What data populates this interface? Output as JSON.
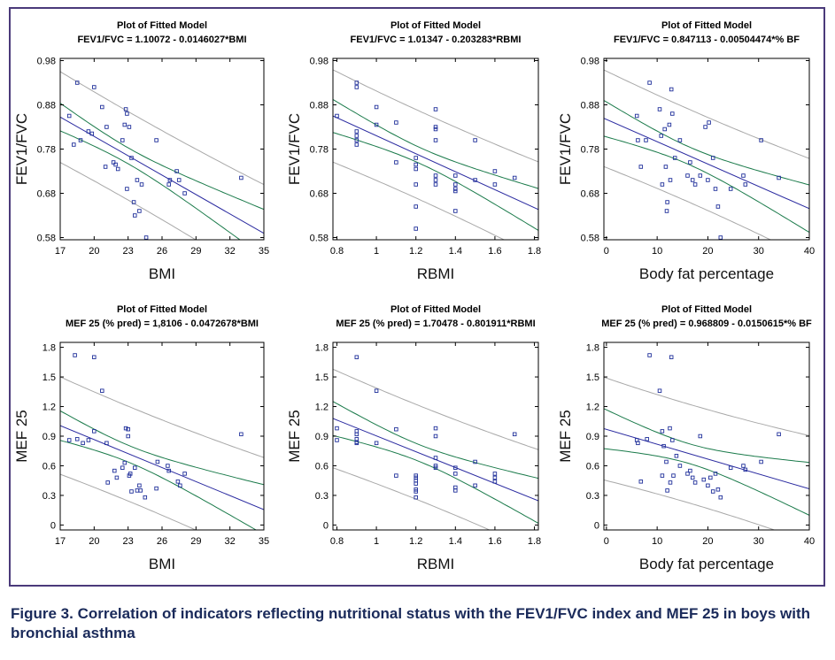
{
  "caption": "Figure 3. Correlation of indicators reflecting nutritional status with the FEV1/FVC index and MEF 25 in boys with bronchial asthma",
  "colors": {
    "points": "#1f2f9a",
    "fit": "#2a2aa0",
    "confidence": "#1a7a4a",
    "prediction": "#a8a8a8",
    "frame": "#4a3a7a"
  },
  "chart_data": [
    {
      "type": "scatter",
      "title": "Plot of Fitted Model",
      "subtitle": "FEV1/FVC = 1.10072 - 0.0146027*BMI",
      "xlabel": "BMI",
      "ylabel": "FEV1/FVC",
      "xlim": [
        17,
        35
      ],
      "ylim": [
        0.575,
        0.985
      ],
      "xticks": [
        17,
        20,
        23,
        26,
        29,
        32,
        35
      ],
      "yticks": [
        0.58,
        0.68,
        0.78,
        0.88,
        0.98
      ],
      "xtick_labels": [
        "17",
        "20",
        "23",
        "26",
        "29",
        "32",
        "35"
      ],
      "ytick_labels": [
        "0.58",
        "0.68",
        "0.78",
        "0.88",
        "0.98"
      ],
      "fit": {
        "intercept": 1.10072,
        "slope": -0.0146027
      },
      "conf_hw": 0.018,
      "pred_hw": 0.1,
      "points": [
        [
          17.8,
          0.855
        ],
        [
          18.2,
          0.79
        ],
        [
          18.5,
          0.93
        ],
        [
          18.8,
          0.8
        ],
        [
          19.5,
          0.82
        ],
        [
          19.8,
          0.815
        ],
        [
          20.0,
          0.92
        ],
        [
          20.7,
          0.875
        ],
        [
          21.0,
          0.74
        ],
        [
          21.1,
          0.83
        ],
        [
          21.7,
          0.75
        ],
        [
          21.9,
          0.745
        ],
        [
          22.1,
          0.735
        ],
        [
          22.5,
          0.8
        ],
        [
          22.7,
          0.835
        ],
        [
          22.8,
          0.87
        ],
        [
          22.9,
          0.69
        ],
        [
          22.9,
          0.86
        ],
        [
          23.1,
          0.83
        ],
        [
          23.3,
          0.76
        ],
        [
          23.5,
          0.66
        ],
        [
          23.6,
          0.63
        ],
        [
          23.8,
          0.71
        ],
        [
          24.0,
          0.64
        ],
        [
          24.2,
          0.7
        ],
        [
          24.6,
          0.58
        ],
        [
          25.5,
          0.8
        ],
        [
          26.6,
          0.7
        ],
        [
          26.7,
          0.71
        ],
        [
          27.3,
          0.73
        ],
        [
          27.5,
          0.71
        ],
        [
          28.0,
          0.68
        ],
        [
          33.0,
          0.715
        ]
      ]
    },
    {
      "type": "scatter",
      "title": "Plot of Fitted Model",
      "subtitle": "FEV1/FVC = 1.01347 - 0.203283*RBMI",
      "xlabel": "RBMI",
      "ylabel": "FEV1/FVC",
      "xlim": [
        0.78,
        1.82
      ],
      "ylim": [
        0.575,
        0.985
      ],
      "xticks": [
        0.8,
        1,
        1.2,
        1.4,
        1.6,
        1.8
      ],
      "yticks": [
        0.58,
        0.68,
        0.78,
        0.88,
        0.98
      ],
      "xtick_labels": [
        "0.8",
        "1",
        "1.2",
        "1.4",
        "1.6",
        "1.8"
      ],
      "ytick_labels": [
        "0.58",
        "0.68",
        "0.78",
        "0.88",
        "0.98"
      ],
      "fit": {
        "intercept": 1.01347,
        "slope": -0.203283
      },
      "conf_hw": 0.018,
      "pred_hw": 0.1,
      "points": [
        [
          0.8,
          0.855
        ],
        [
          0.9,
          0.93
        ],
        [
          0.9,
          0.92
        ],
        [
          0.9,
          0.82
        ],
        [
          0.9,
          0.81
        ],
        [
          0.9,
          0.79
        ],
        [
          0.9,
          0.8
        ],
        [
          1.0,
          0.875
        ],
        [
          1.0,
          0.835
        ],
        [
          1.1,
          0.84
        ],
        [
          1.1,
          0.75
        ],
        [
          1.2,
          0.76
        ],
        [
          1.2,
          0.745
        ],
        [
          1.2,
          0.735
        ],
        [
          1.2,
          0.7
        ],
        [
          1.2,
          0.65
        ],
        [
          1.2,
          0.6
        ],
        [
          1.3,
          0.87
        ],
        [
          1.3,
          0.83
        ],
        [
          1.3,
          0.825
        ],
        [
          1.3,
          0.8
        ],
        [
          1.3,
          0.72
        ],
        [
          1.3,
          0.71
        ],
        [
          1.3,
          0.7
        ],
        [
          1.4,
          0.72
        ],
        [
          1.4,
          0.7
        ],
        [
          1.4,
          0.69
        ],
        [
          1.4,
          0.685
        ],
        [
          1.4,
          0.64
        ],
        [
          1.5,
          0.8
        ],
        [
          1.5,
          0.71
        ],
        [
          1.6,
          0.73
        ],
        [
          1.6,
          0.7
        ],
        [
          1.7,
          0.715
        ]
      ]
    },
    {
      "type": "scatter",
      "title": "Plot of Fitted Model",
      "subtitle": "FEV1/FVC = 0.847113 - 0.00504474*% BF",
      "xlabel": "Body fat percentage",
      "ylabel": "FEV1/FVC",
      "xlim": [
        -0.5,
        40
      ],
      "ylim": [
        0.575,
        0.985
      ],
      "xticks": [
        0,
        10,
        20,
        30,
        40
      ],
      "yticks": [
        0.58,
        0.68,
        0.78,
        0.88,
        0.98
      ],
      "xtick_labels": [
        "0",
        "10",
        "20",
        "30",
        "40"
      ],
      "ytick_labels": [
        "0.58",
        "0.68",
        "0.78",
        "0.88",
        "0.98"
      ],
      "fit": {
        "intercept": 0.847113,
        "slope": -0.00504474
      },
      "conf_hw": 0.02,
      "pred_hw": 0.105,
      "points": [
        [
          6.0,
          0.855
        ],
        [
          6.2,
          0.8
        ],
        [
          6.8,
          0.74
        ],
        [
          7.8,
          0.8
        ],
        [
          8.5,
          0.93
        ],
        [
          10.5,
          0.87
        ],
        [
          10.8,
          0.81
        ],
        [
          11.0,
          0.7
        ],
        [
          11.5,
          0.825
        ],
        [
          11.7,
          0.74
        ],
        [
          11.9,
          0.64
        ],
        [
          12.0,
          0.66
        ],
        [
          12.4,
          0.835
        ],
        [
          12.6,
          0.71
        ],
        [
          12.8,
          0.915
        ],
        [
          13.0,
          0.86
        ],
        [
          13.5,
          0.76
        ],
        [
          14.5,
          0.8
        ],
        [
          16.0,
          0.72
        ],
        [
          16.5,
          0.75
        ],
        [
          17.0,
          0.71
        ],
        [
          17.5,
          0.7
        ],
        [
          18.5,
          0.72
        ],
        [
          19.5,
          0.83
        ],
        [
          20.0,
          0.71
        ],
        [
          20.2,
          0.84
        ],
        [
          21.0,
          0.76
        ],
        [
          21.5,
          0.69
        ],
        [
          22.0,
          0.65
        ],
        [
          22.5,
          0.58
        ],
        [
          24.5,
          0.69
        ],
        [
          27.0,
          0.72
        ],
        [
          27.4,
          0.7
        ],
        [
          30.5,
          0.8
        ],
        [
          34.0,
          0.715
        ]
      ]
    },
    {
      "type": "scatter",
      "title": "Plot of Fitted Model",
      "subtitle": "MEF 25 (% pred) = 1,8106 - 0.0472678*BMI",
      "xlabel": "BMI",
      "ylabel": "MEF 25",
      "xlim": [
        17,
        35
      ],
      "ylim": [
        -0.05,
        1.85
      ],
      "xticks": [
        17,
        20,
        23,
        26,
        29,
        32,
        35
      ],
      "yticks": [
        0,
        0.3,
        0.6,
        0.9,
        1.2,
        1.5,
        1.8
      ],
      "xtick_labels": [
        "17",
        "20",
        "23",
        "26",
        "29",
        "32",
        "35"
      ],
      "ytick_labels": [
        "0",
        "0.3",
        "0.6",
        "0.9",
        "1.2",
        "1.5",
        "1.8"
      ],
      "fit": {
        "intercept": 1.8106,
        "slope": -0.0472678
      },
      "conf_hw": 0.085,
      "pred_hw": 0.48,
      "points": [
        [
          17.8,
          0.86
        ],
        [
          18.3,
          1.72
        ],
        [
          18.5,
          0.87
        ],
        [
          19.0,
          0.83
        ],
        [
          19.5,
          0.86
        ],
        [
          20.0,
          1.7
        ],
        [
          20.0,
          0.95
        ],
        [
          20.7,
          1.36
        ],
        [
          21.1,
          0.83
        ],
        [
          21.2,
          0.43
        ],
        [
          21.8,
          0.55
        ],
        [
          22.0,
          0.48
        ],
        [
          22.5,
          0.58
        ],
        [
          22.7,
          0.63
        ],
        [
          22.8,
          0.98
        ],
        [
          23.0,
          0.97
        ],
        [
          23.0,
          0.9
        ],
        [
          23.1,
          0.5
        ],
        [
          23.2,
          0.52
        ],
        [
          23.3,
          0.34
        ],
        [
          23.6,
          0.58
        ],
        [
          23.8,
          0.35
        ],
        [
          24.0,
          0.4
        ],
        [
          24.1,
          0.35
        ],
        [
          24.5,
          0.28
        ],
        [
          25.5,
          0.37
        ],
        [
          25.6,
          0.64
        ],
        [
          26.5,
          0.6
        ],
        [
          26.6,
          0.55
        ],
        [
          27.4,
          0.44
        ],
        [
          27.6,
          0.4
        ],
        [
          28.0,
          0.52
        ],
        [
          33.0,
          0.92
        ]
      ]
    },
    {
      "type": "scatter",
      "title": "Plot of Fitted Model",
      "subtitle": "MEF 25 (% pred) = 1.70478 - 0.801911*RBMI",
      "xlabel": "RBMI",
      "ylabel": "MEF 25",
      "xlim": [
        0.78,
        1.82
      ],
      "ylim": [
        -0.05,
        1.85
      ],
      "xticks": [
        0.8,
        1,
        1.2,
        1.4,
        1.6,
        1.8
      ],
      "yticks": [
        0,
        0.3,
        0.6,
        0.9,
        1.2,
        1.5,
        1.8
      ],
      "xtick_labels": [
        "0.8",
        "1",
        "1.2",
        "1.4",
        "1.6",
        "1.8"
      ],
      "ytick_labels": [
        "0",
        "0.3",
        "0.6",
        "0.9",
        "1.2",
        "1.5",
        "1.8"
      ],
      "fit": {
        "intercept": 1.70478,
        "slope": -0.801911
      },
      "conf_hw": 0.085,
      "pred_hw": 0.48,
      "points": [
        [
          0.8,
          0.86
        ],
        [
          0.8,
          0.98
        ],
        [
          0.9,
          1.7
        ],
        [
          0.9,
          0.95
        ],
        [
          0.9,
          0.92
        ],
        [
          0.9,
          0.87
        ],
        [
          0.9,
          0.84
        ],
        [
          0.9,
          0.83
        ],
        [
          1.0,
          1.36
        ],
        [
          1.0,
          0.83
        ],
        [
          1.1,
          0.97
        ],
        [
          1.1,
          0.5
        ],
        [
          1.2,
          0.5
        ],
        [
          1.2,
          0.48
        ],
        [
          1.2,
          0.45
        ],
        [
          1.2,
          0.42
        ],
        [
          1.2,
          0.36
        ],
        [
          1.2,
          0.34
        ],
        [
          1.2,
          0.28
        ],
        [
          1.3,
          0.98
        ],
        [
          1.3,
          0.9
        ],
        [
          1.3,
          0.68
        ],
        [
          1.3,
          0.6
        ],
        [
          1.3,
          0.58
        ],
        [
          1.4,
          0.58
        ],
        [
          1.4,
          0.52
        ],
        [
          1.4,
          0.38
        ],
        [
          1.4,
          0.35
        ],
        [
          1.5,
          0.64
        ],
        [
          1.5,
          0.4
        ],
        [
          1.6,
          0.52
        ],
        [
          1.6,
          0.48
        ],
        [
          1.6,
          0.44
        ],
        [
          1.7,
          0.92
        ]
      ]
    },
    {
      "type": "scatter",
      "title": "Plot of Fitted Model",
      "subtitle": "MEF 25 (% pred) = 0.968809 - 0.0150615*% BF",
      "xlabel": "Body fat percentage",
      "ylabel": "MEF 25",
      "xlim": [
        -0.5,
        40
      ],
      "ylim": [
        -0.05,
        1.85
      ],
      "xticks": [
        0,
        10,
        20,
        30,
        40
      ],
      "yticks": [
        0,
        0.3,
        0.6,
        0.9,
        1.2,
        1.5,
        1.8
      ],
      "xtick_labels": [
        "0",
        "10",
        "20",
        "30",
        "40"
      ],
      "ytick_labels": [
        "0",
        "0.3",
        "0.6",
        "0.9",
        "1.2",
        "1.5",
        "1.8"
      ],
      "fit": {
        "intercept": 0.968809,
        "slope": -0.0150615
      },
      "conf_hw": 0.1,
      "pred_hw": 0.5,
      "points": [
        [
          6.0,
          0.86
        ],
        [
          6.2,
          0.83
        ],
        [
          6.8,
          0.44
        ],
        [
          8.0,
          0.87
        ],
        [
          8.5,
          1.72
        ],
        [
          10.5,
          1.36
        ],
        [
          11.0,
          0.95
        ],
        [
          11.0,
          0.5
        ],
        [
          11.3,
          0.8
        ],
        [
          11.8,
          0.64
        ],
        [
          12.0,
          0.35
        ],
        [
          12.5,
          0.98
        ],
        [
          12.6,
          0.43
        ],
        [
          12.8,
          1.7
        ],
        [
          13.0,
          0.86
        ],
        [
          13.2,
          0.5
        ],
        [
          13.8,
          0.7
        ],
        [
          14.5,
          0.6
        ],
        [
          16.0,
          0.52
        ],
        [
          16.5,
          0.55
        ],
        [
          17.0,
          0.48
        ],
        [
          17.5,
          0.43
        ],
        [
          18.5,
          0.9
        ],
        [
          19.2,
          0.46
        ],
        [
          20.0,
          0.4
        ],
        [
          20.5,
          0.48
        ],
        [
          21.0,
          0.34
        ],
        [
          21.5,
          0.52
        ],
        [
          22.0,
          0.36
        ],
        [
          22.5,
          0.28
        ],
        [
          24.5,
          0.58
        ],
        [
          27.0,
          0.6
        ],
        [
          27.4,
          0.56
        ],
        [
          30.5,
          0.64
        ],
        [
          34.0,
          0.92
        ]
      ]
    }
  ]
}
